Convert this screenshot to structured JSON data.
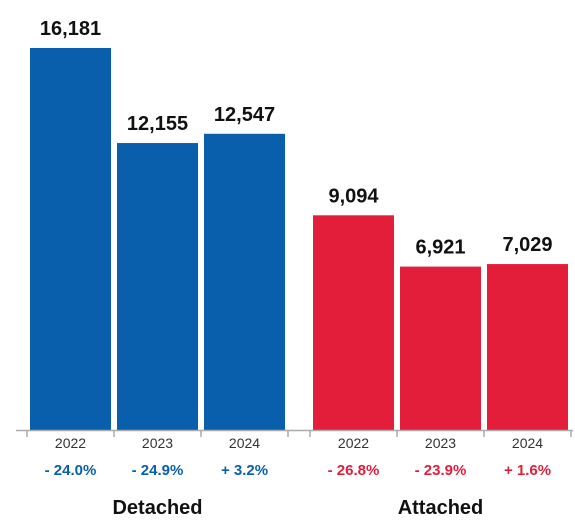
{
  "chart_data": {
    "type": "bar",
    "groups": [
      {
        "name": "Detached",
        "color": "#0a5fad",
        "categories": [
          "2022",
          "2023",
          "2024"
        ],
        "values": [
          16181,
          12155,
          12547
        ],
        "value_labels": [
          "16,181",
          "12,155",
          "12,547"
        ],
        "change_labels": [
          "- 24.0%",
          "- 24.9%",
          "+ 3.2%"
        ]
      },
      {
        "name": "Attached",
        "color": "#e21e3a",
        "categories": [
          "2022",
          "2023",
          "2024"
        ],
        "values": [
          9094,
          6921,
          7029
        ],
        "value_labels": [
          "9,094",
          "6,921",
          "7,029"
        ],
        "change_labels": [
          "- 26.8%",
          "- 23.9%",
          "+ 1.6%"
        ]
      }
    ],
    "ylim": [
      0,
      16181
    ],
    "grid": false,
    "legend": "none",
    "axis_color": "#aaaaaa"
  }
}
